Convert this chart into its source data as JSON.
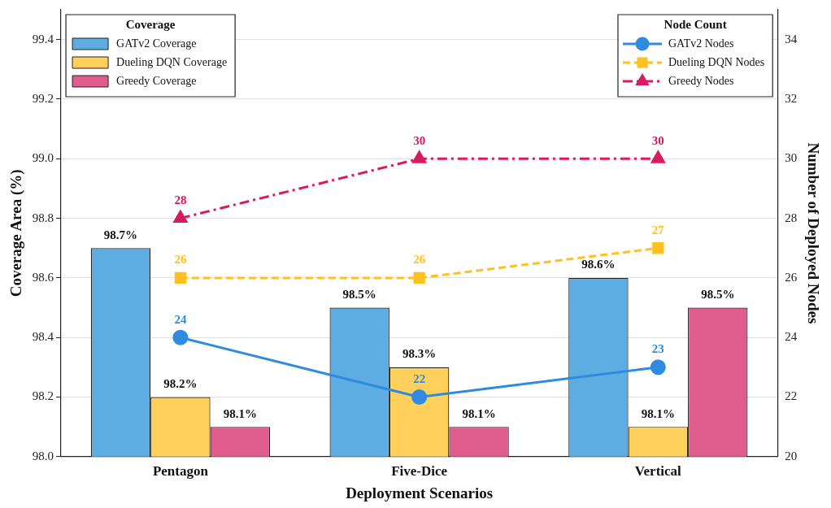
{
  "chart_data": {
    "type": "bar",
    "xlabel": "Deployment Scenarios",
    "ylabel": "Coverage Area (%)",
    "y2label": "Number of Deployed Nodes",
    "legend_title": "Coverage",
    "annotations": [
      "Node Count"
    ],
    "categories": [
      "Pentagon",
      "Five-Dice",
      "Vertical"
    ],
    "series": [
      {
        "name": "GATv2 Coverage",
        "color": "#5dade2",
        "values": [
          98.7,
          98.5,
          98.6
        ],
        "value_labels": [
          "98.7%",
          "98.5%",
          "98.6%"
        ]
      },
      {
        "name": "Dueling DQN Coverage",
        "color": "#ffd15c",
        "values": [
          98.2,
          98.3,
          98.1
        ],
        "value_labels": [
          "98.2%",
          "98.3%",
          "98.1%"
        ]
      },
      {
        "name": "Greedy Coverage",
        "color": "#e05c8c",
        "values": [
          98.1,
          98.1,
          98.5
        ],
        "value_labels": [
          "98.1%",
          "98.1%",
          "98.5%"
        ]
      },
      {
        "name": "GATv2 Nodes",
        "type": "line",
        "axis": "y2",
        "color": "#2e8be0",
        "marker": "circle",
        "line_style": "solid",
        "values": [
          24,
          22,
          23
        ],
        "value_labels": [
          "24",
          "22",
          "23"
        ]
      },
      {
        "name": "Dueling DQN Nodes",
        "type": "line",
        "axis": "y2",
        "color": "#ffc020",
        "marker": "square",
        "line_style": "dashed",
        "values": [
          26,
          26,
          27
        ],
        "value_labels": [
          "26",
          "26",
          "27"
        ]
      },
      {
        "name": "Greedy Nodes",
        "type": "line",
        "axis": "y2",
        "color": "#d81b60",
        "marker": "triangle",
        "line_style": "dashdot",
        "values": [
          28,
          30,
          30
        ],
        "value_labels": [
          "28",
          "30",
          "30"
        ]
      }
    ],
    "ylim": [
      98.0,
      99.5
    ],
    "yticks": [
      {
        "value": 98.0,
        "label": "98.0"
      },
      98.2,
      98.4,
      98.6,
      98.8,
      {
        "value": 99.0,
        "label": "99.0"
      },
      99.2,
      99.4
    ],
    "y2lim": [
      20,
      35
    ],
    "y2ticks": [
      20,
      22,
      24,
      26,
      28,
      30,
      32,
      34
    ],
    "grid": "y",
    "legend": "top"
  }
}
